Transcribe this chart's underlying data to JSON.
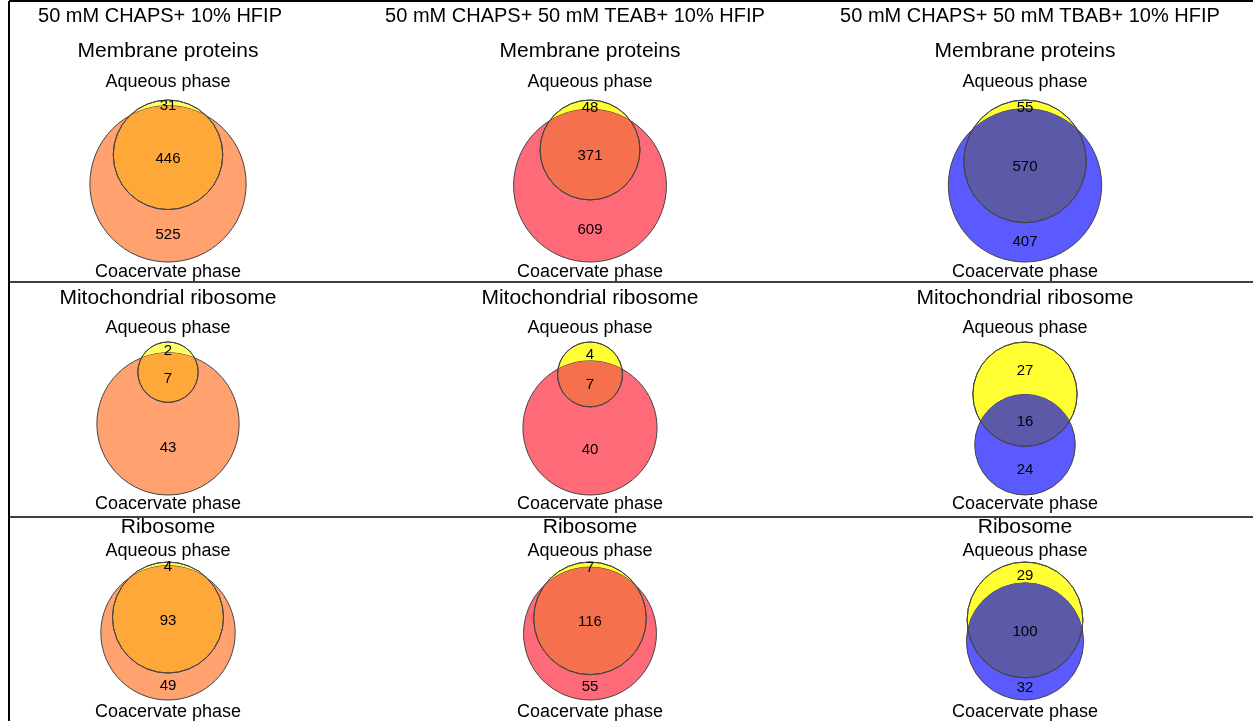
{
  "chart_data": [
    {
      "type": "other",
      "title": "50 mM CHAPS+ 10% HFIP",
      "subtitle": "Membrane proteins",
      "categories": [
        "Aqueous phase",
        null,
        "Coacervate phase"
      ],
      "values": [
        31,
        446,
        525
      ],
      "data_labels": true,
      "colors": [
        "#ffff66",
        "#ffa83a",
        "#ffa270"
      ]
    },
    {
      "type": "other",
      "title": "50 mM CHAPS+ 50 mM TEAB+ 10% HFIP",
      "subtitle": "Membrane proteins",
      "categories": [
        "Aqueous phase",
        null,
        "Coacervate phase"
      ],
      "values": [
        48,
        371,
        609
      ],
      "data_labels": true,
      "colors": [
        "#ffff33",
        "#f5704c",
        "#ff6a78"
      ]
    },
    {
      "type": "other",
      "title": "50 mM CHAPS+ 50 mM TBAB+ 10% HFIP",
      "subtitle": "Membrane proteins",
      "categories": [
        "Aqueous phase",
        null,
        "Coacervate phase"
      ],
      "values": [
        55,
        570,
        407
      ],
      "data_labels": true,
      "colors": [
        "#ffff33",
        "#5c5aa8",
        "#5a5aff"
      ]
    },
    {
      "type": "other",
      "title": "Mitochondrial ribosome",
      "categories": [
        "Aqueous phase",
        null,
        "Coacervate phase"
      ],
      "values": [
        2,
        7,
        43
      ],
      "data_labels": true,
      "colors": [
        "#ffff66",
        "#ffa83a",
        "#ffa270"
      ]
    },
    {
      "type": "other",
      "title": "Mitochondrial ribosome",
      "categories": [
        "Aqueous phase",
        null,
        "Coacervate phase"
      ],
      "values": [
        4,
        7,
        40
      ],
      "data_labels": true,
      "colors": [
        "#ffff33",
        "#f5704c",
        "#ff6a78"
      ]
    },
    {
      "type": "other",
      "title": "Mitochondrial ribosome",
      "categories": [
        "Aqueous phase",
        null,
        "Coacervate phase"
      ],
      "values": [
        27,
        16,
        24
      ],
      "data_labels": true,
      "colors": [
        "#ffff33",
        "#5c5aa8",
        "#5a5aff"
      ]
    },
    {
      "type": "other",
      "title": "Ribosome",
      "categories": [
        "Aqueous phase",
        null,
        "Coacervate phase"
      ],
      "values": [
        4,
        93,
        49
      ],
      "data_labels": true,
      "colors": [
        "#ffff66",
        "#ffa83a",
        "#ffa270"
      ]
    },
    {
      "type": "other",
      "title": "Ribosome",
      "categories": [
        "Aqueous phase",
        null,
        "Coacervate phase"
      ],
      "values": [
        7,
        116,
        55
      ],
      "data_labels": true,
      "colors": [
        "#ffff33",
        "#f5704c",
        "#ff6a78"
      ]
    },
    {
      "type": "other",
      "title": "Ribosome",
      "categories": [
        "Aqueous phase",
        null,
        "Coacervate phase"
      ],
      "values": [
        29,
        100,
        32
      ],
      "data_labels": true,
      "colors": [
        "#ffff33",
        "#5c5aa8",
        "#5a5aff"
      ]
    }
  ]
}
